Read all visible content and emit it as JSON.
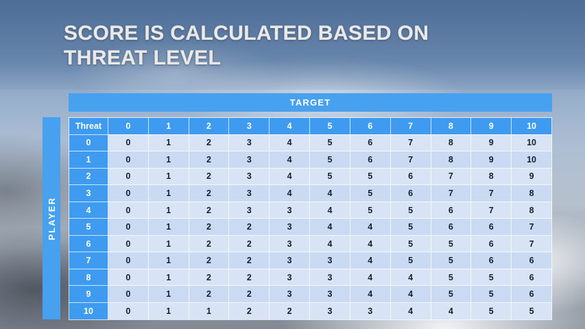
{
  "slide": {
    "title_lines": [
      "SCORE IS CALCULATED BASED ON",
      "THREAT LEVEL"
    ]
  },
  "table": {
    "target_label": "TARGET",
    "player_label": "PLAYER",
    "corner_label": "Threat",
    "col_headers": [
      "0",
      "1",
      "2",
      "3",
      "4",
      "5",
      "6",
      "7",
      "8",
      "9",
      "10"
    ],
    "rows": [
      {
        "header": "0",
        "cells": [
          "0",
          "1",
          "2",
          "3",
          "4",
          "5",
          "6",
          "7",
          "8",
          "9",
          "10"
        ]
      },
      {
        "header": "1",
        "cells": [
          "0",
          "1",
          "2",
          "3",
          "4",
          "5",
          "6",
          "7",
          "8",
          "9",
          "10"
        ]
      },
      {
        "header": "2",
        "cells": [
          "0",
          "1",
          "2",
          "3",
          "4",
          "5",
          "5",
          "6",
          "7",
          "8",
          "9"
        ]
      },
      {
        "header": "3",
        "cells": [
          "0",
          "1",
          "2",
          "3",
          "4",
          "4",
          "5",
          "6",
          "7",
          "7",
          "8"
        ]
      },
      {
        "header": "4",
        "cells": [
          "0",
          "1",
          "2",
          "3",
          "3",
          "4",
          "5",
          "5",
          "6",
          "7",
          "8"
        ]
      },
      {
        "header": "5",
        "cells": [
          "0",
          "1",
          "2",
          "2",
          "3",
          "4",
          "4",
          "5",
          "6",
          "6",
          "7"
        ]
      },
      {
        "header": "6",
        "cells": [
          "0",
          "1",
          "2",
          "2",
          "3",
          "4",
          "4",
          "5",
          "5",
          "6",
          "7"
        ]
      },
      {
        "header": "7",
        "cells": [
          "0",
          "1",
          "2",
          "2",
          "3",
          "3",
          "4",
          "5",
          "5",
          "6",
          "6"
        ]
      },
      {
        "header": "8",
        "cells": [
          "0",
          "1",
          "2",
          "2",
          "3",
          "3",
          "4",
          "4",
          "5",
          "5",
          "6"
        ]
      },
      {
        "header": "9",
        "cells": [
          "0",
          "1",
          "2",
          "2",
          "3",
          "3",
          "4",
          "4",
          "5",
          "5",
          "6"
        ]
      },
      {
        "header": "10",
        "cells": [
          "0",
          "1",
          "1",
          "2",
          "2",
          "3",
          "3",
          "4",
          "4",
          "5",
          "5"
        ]
      }
    ]
  },
  "colors": {
    "accent_blue": "#47A1EF",
    "header_blue": "#3E9BEF",
    "band_light": "#D8E4F6",
    "band_dark": "#C9DAF2",
    "cell_text": "#17202A",
    "title_text": "#E9E9EA"
  },
  "chart_data": {
    "type": "table",
    "title": "SCORE IS CALCULATED BASED ON THREAT LEVEL",
    "x_dimension": "TARGET",
    "y_dimension": "PLAYER",
    "corner": "Threat",
    "columns": [
      0,
      1,
      2,
      3,
      4,
      5,
      6,
      7,
      8,
      9,
      10
    ],
    "rows": [
      0,
      1,
      2,
      3,
      4,
      5,
      6,
      7,
      8,
      9,
      10
    ],
    "values": [
      [
        0,
        1,
        2,
        3,
        4,
        5,
        6,
        7,
        8,
        9,
        10
      ],
      [
        0,
        1,
        2,
        3,
        4,
        5,
        6,
        7,
        8,
        9,
        10
      ],
      [
        0,
        1,
        2,
        3,
        4,
        5,
        5,
        6,
        7,
        8,
        9
      ],
      [
        0,
        1,
        2,
        3,
        4,
        4,
        5,
        6,
        7,
        7,
        8
      ],
      [
        0,
        1,
        2,
        3,
        3,
        4,
        5,
        5,
        6,
        7,
        8
      ],
      [
        0,
        1,
        2,
        2,
        3,
        4,
        4,
        5,
        6,
        6,
        7
      ],
      [
        0,
        1,
        2,
        2,
        3,
        4,
        4,
        5,
        5,
        6,
        7
      ],
      [
        0,
        1,
        2,
        2,
        3,
        3,
        4,
        5,
        5,
        6,
        6
      ],
      [
        0,
        1,
        2,
        2,
        3,
        3,
        4,
        4,
        5,
        5,
        6
      ],
      [
        0,
        1,
        2,
        2,
        3,
        3,
        4,
        4,
        5,
        5,
        6
      ],
      [
        0,
        1,
        1,
        2,
        2,
        3,
        3,
        4,
        4,
        5,
        5
      ]
    ]
  }
}
